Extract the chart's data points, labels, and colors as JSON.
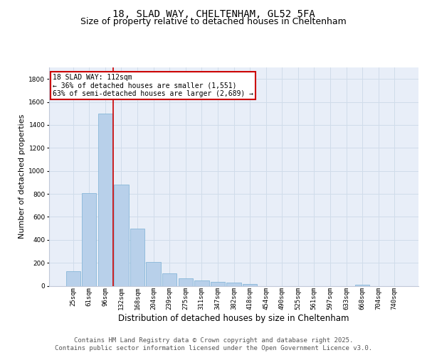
{
  "title_line1": "18, SLAD WAY, CHELTENHAM, GL52 5FA",
  "title_line2": "Size of property relative to detached houses in Cheltenham",
  "xlabel": "Distribution of detached houses by size in Cheltenham",
  "ylabel": "Number of detached properties",
  "categories": [
    "25sqm",
    "61sqm",
    "96sqm",
    "132sqm",
    "168sqm",
    "204sqm",
    "239sqm",
    "275sqm",
    "311sqm",
    "347sqm",
    "382sqm",
    "418sqm",
    "454sqm",
    "490sqm",
    "525sqm",
    "561sqm",
    "597sqm",
    "633sqm",
    "668sqm",
    "704sqm",
    "740sqm"
  ],
  "values": [
    125,
    805,
    1500,
    880,
    500,
    210,
    110,
    65,
    45,
    32,
    28,
    15,
    0,
    0,
    0,
    0,
    0,
    0,
    10,
    0,
    0
  ],
  "bar_color": "#b8d0ea",
  "bar_edge_color": "#7aafd4",
  "vline_color": "#cc0000",
  "annotation_line1": "18 SLAD WAY: 112sqm",
  "annotation_line2": "← 36% of detached houses are smaller (1,551)",
  "annotation_line3": "63% of semi-detached houses are larger (2,689) →",
  "annotation_box_color": "#ffffff",
  "annotation_box_edge_color": "#cc0000",
  "ylim": [
    0,
    1900
  ],
  "yticks": [
    0,
    200,
    400,
    600,
    800,
    1000,
    1200,
    1400,
    1600,
    1800
  ],
  "grid_color": "#d0dcea",
  "bg_color": "#e8eef8",
  "footer_line1": "Contains HM Land Registry data © Crown copyright and database right 2025.",
  "footer_line2": "Contains public sector information licensed under the Open Government Licence v3.0.",
  "title_fontsize": 10,
  "subtitle_fontsize": 9,
  "tick_fontsize": 6.5,
  "ylabel_fontsize": 8,
  "xlabel_fontsize": 8.5,
  "annot_fontsize": 7,
  "footer_fontsize": 6.5
}
